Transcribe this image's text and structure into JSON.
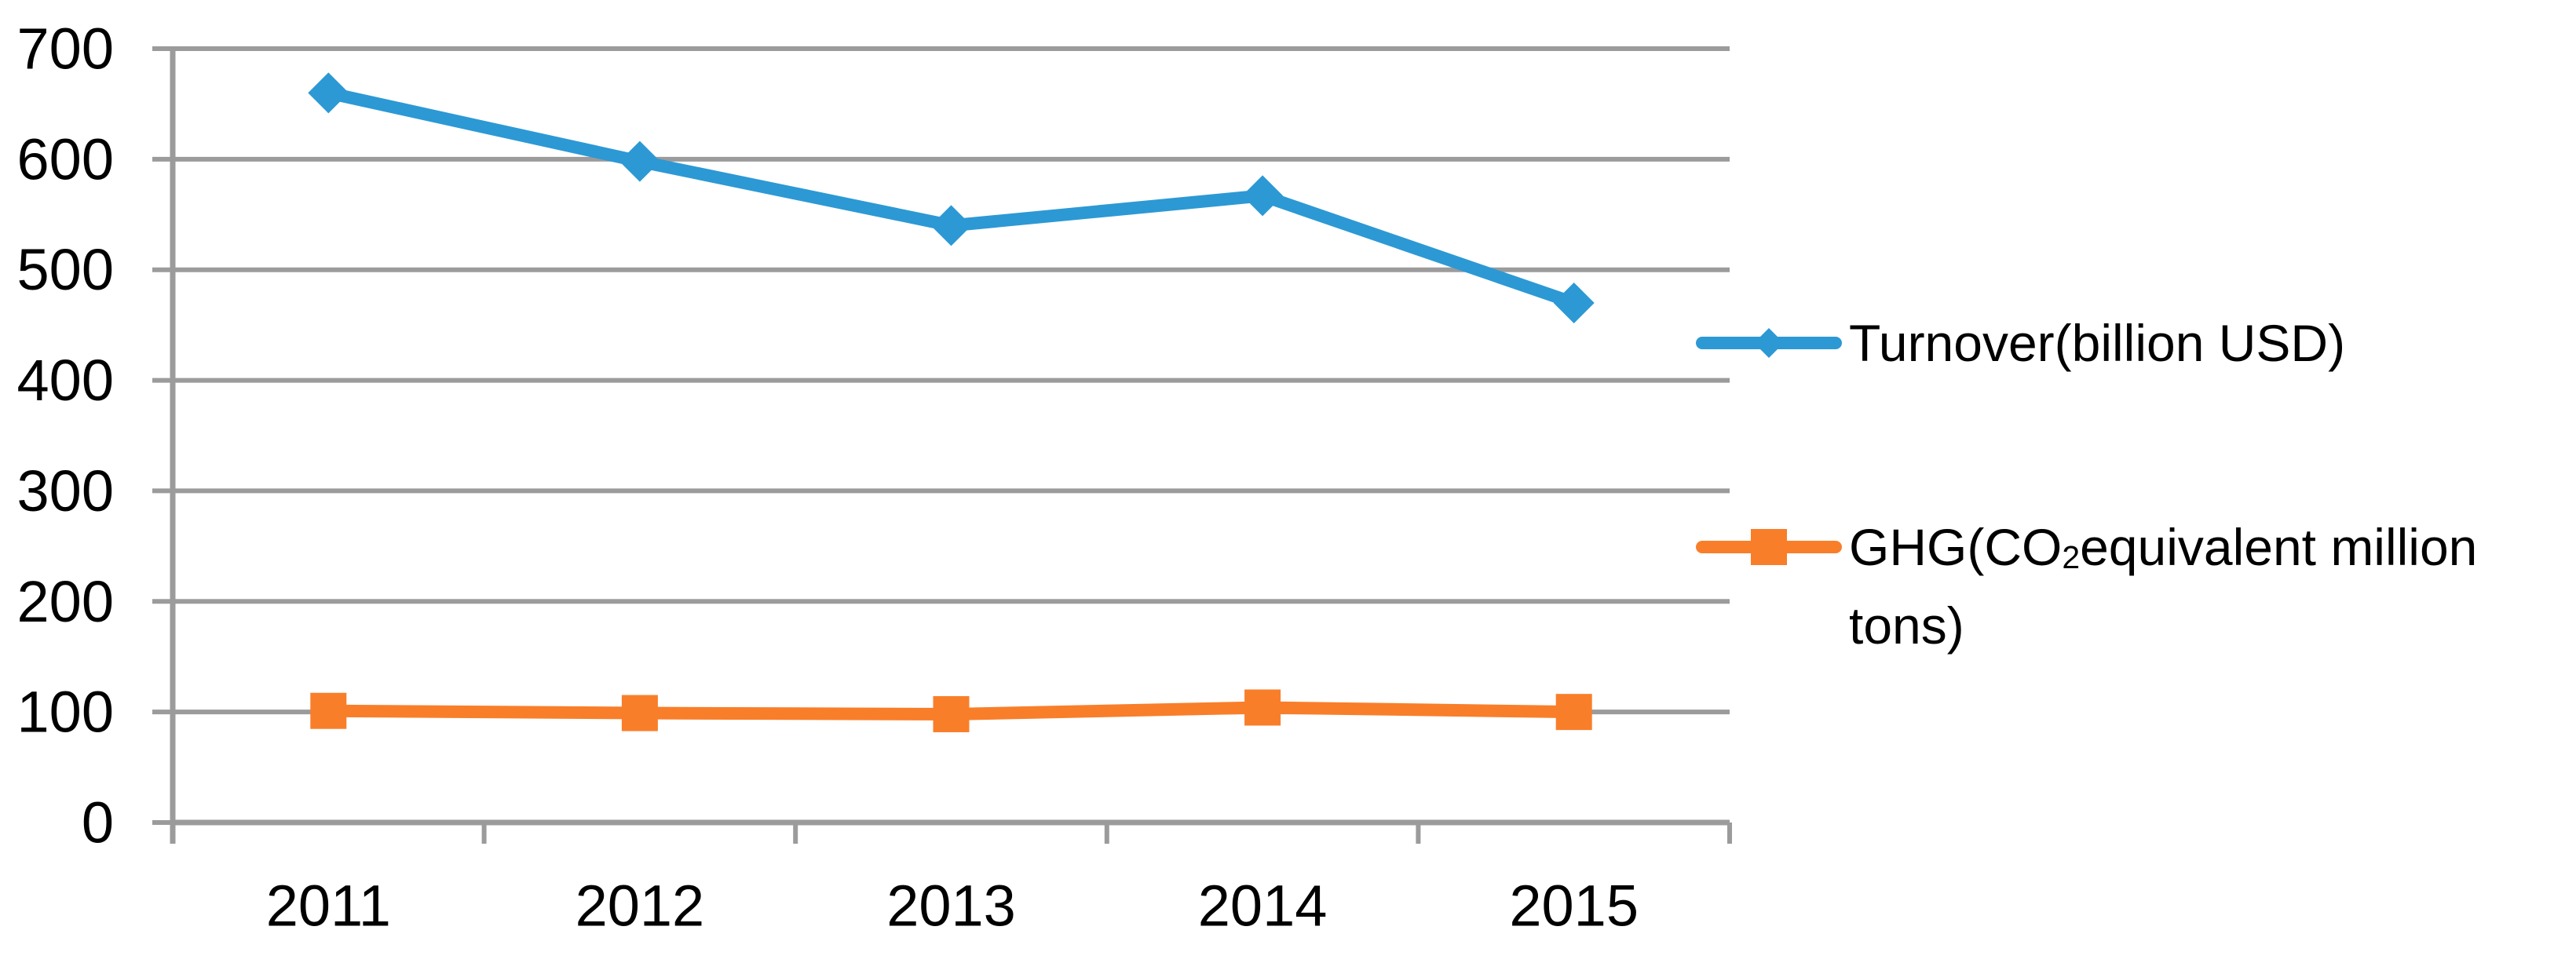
{
  "chart": {
    "background": "#FFFFFF",
    "grid_color": "#9B9B9B",
    "text_color": "#000000"
  },
  "chart_data": {
    "type": "line",
    "title": "",
    "categories": [
      "2011",
      "2012",
      "2013",
      "2014",
      "2015"
    ],
    "series": [
      {
        "name": "Turnover(billion USD)",
        "marker": "diamond",
        "color": "#2C99D4",
        "values": [
          660,
          598,
          540,
          567,
          470
        ]
      },
      {
        "name": "GHG(CO₂equivalent million tons)",
        "marker": "square",
        "color": "#F97E2A",
        "values": [
          101,
          99,
          98,
          104,
          100
        ]
      }
    ],
    "xlabel": "",
    "ylabel": "",
    "ylim": [
      0,
      700
    ],
    "ytick_interval": 100,
    "yticks": [
      "0",
      "100",
      "200",
      "300",
      "400",
      "500",
      "600",
      "700"
    ],
    "grid": true,
    "legend_position": "right",
    "legend": [
      {
        "series_index": 0,
        "lines": [
          "Turnover(billion USD)"
        ]
      },
      {
        "series_index": 1,
        "lines": [
          "GHG(CO₂equivalent million",
          "tons)"
        ]
      }
    ]
  }
}
